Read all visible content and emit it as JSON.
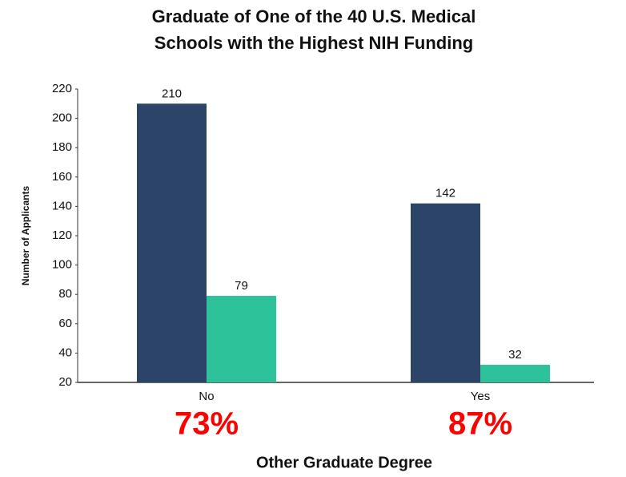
{
  "chart_data": {
    "type": "bar",
    "title": [
      "Graduate of One of the 40 U.S. Medical",
      "Schools with the Highest NIH Funding"
    ],
    "x_label": "Other Graduate Degree",
    "y_label": "Number of Applicants",
    "categories": [
      "No",
      "Yes"
    ],
    "series": [
      {
        "color": "#2b4468",
        "values": [
          210,
          142
        ]
      },
      {
        "color": "#2ec29a",
        "values": [
          79,
          32
        ]
      }
    ],
    "annotations": [
      "73%",
      "87%"
    ],
    "ylim": [
      20,
      220
    ],
    "yticks": [
      20,
      40,
      60,
      80,
      100,
      120,
      140,
      160,
      180,
      200,
      220
    ],
    "grid": false
  }
}
